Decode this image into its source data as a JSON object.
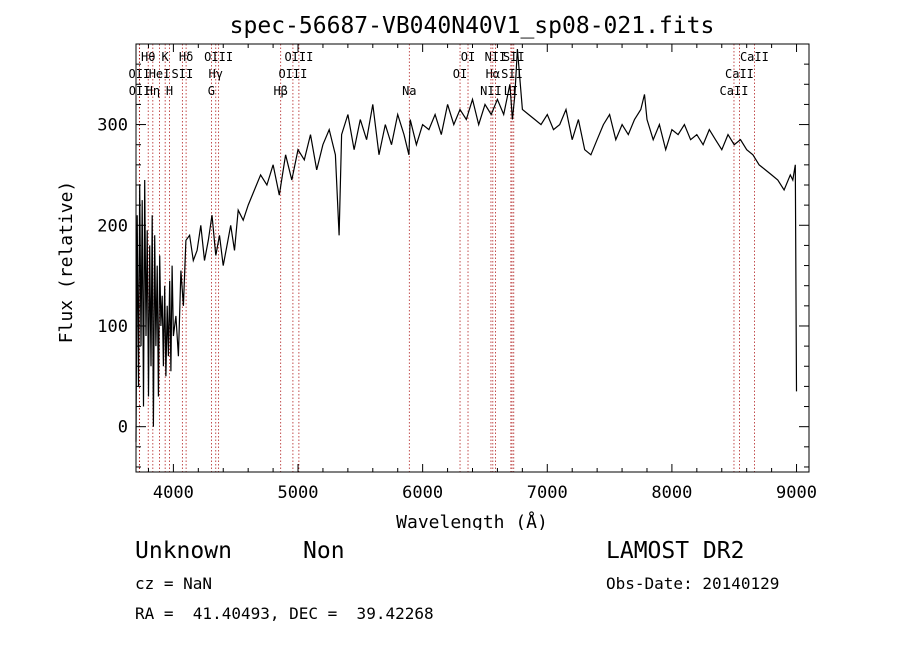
{
  "chart_data": {
    "type": "line",
    "title": "spec-56687-VB040N40V1_sp08-021.fits",
    "xlabel": "Wavelength (Å)",
    "ylabel": "Flux (relative)",
    "xlim": [
      3700,
      9100
    ],
    "ylim": [
      -45,
      380
    ],
    "xticks": [
      4000,
      5000,
      6000,
      7000,
      8000,
      9000
    ],
    "yticks": [
      0,
      100,
      200,
      300
    ],
    "grid": false,
    "series": [
      {
        "color": "#000000",
        "x": [
          3700,
          3710,
          3720,
          3730,
          3740,
          3750,
          3760,
          3770,
          3780,
          3790,
          3800,
          3810,
          3820,
          3830,
          3840,
          3850,
          3860,
          3870,
          3880,
          3890,
          3900,
          3910,
          3920,
          3930,
          3940,
          3950,
          3960,
          3970,
          3980,
          3990,
          4000,
          4020,
          4040,
          4060,
          4080,
          4100,
          4130,
          4160,
          4190,
          4220,
          4250,
          4280,
          4310,
          4340,
          4370,
          4400,
          4430,
          4460,
          4490,
          4520,
          4560,
          4600,
          4650,
          4700,
          4750,
          4800,
          4850,
          4900,
          4950,
          5000,
          5050,
          5100,
          5150,
          5200,
          5250,
          5300,
          5330,
          5350,
          5400,
          5450,
          5500,
          5550,
          5600,
          5650,
          5700,
          5750,
          5800,
          5850,
          5890,
          5900,
          5950,
          6000,
          6050,
          6100,
          6150,
          6200,
          6250,
          6300,
          6350,
          6400,
          6450,
          6500,
          6550,
          6600,
          6650,
          6700,
          6720,
          6740,
          6760,
          6800,
          6850,
          6900,
          6950,
          7000,
          7050,
          7100,
          7150,
          7200,
          7250,
          7300,
          7350,
          7400,
          7450,
          7500,
          7550,
          7600,
          7650,
          7700,
          7750,
          7780,
          7800,
          7850,
          7900,
          7950,
          8000,
          8050,
          8100,
          8150,
          8200,
          8250,
          8300,
          8350,
          8400,
          8450,
          8500,
          8550,
          8600,
          8650,
          8700,
          8750,
          8800,
          8850,
          8900,
          8950,
          8970,
          8990,
          9000
        ],
        "values": [
          -15,
          210,
          40,
          240,
          80,
          225,
          20,
          245,
          90,
          195,
          30,
          180,
          60,
          210,
          0,
          190,
          80,
          160,
          30,
          170,
          100,
          130,
          60,
          140,
          50,
          120,
          70,
          145,
          55,
          160,
          90,
          110,
          70,
          155,
          120,
          185,
          190,
          165,
          175,
          200,
          165,
          185,
          210,
          170,
          190,
          160,
          180,
          200,
          175,
          215,
          205,
          220,
          235,
          250,
          240,
          260,
          230,
          270,
          245,
          275,
          265,
          290,
          255,
          280,
          295,
          270,
          190,
          290,
          310,
          275,
          305,
          285,
          320,
          270,
          300,
          280,
          310,
          290,
          270,
          305,
          280,
          300,
          295,
          310,
          290,
          320,
          300,
          315,
          305,
          325,
          300,
          320,
          310,
          325,
          310,
          340,
          305,
          330,
          375,
          315,
          310,
          305,
          300,
          310,
          295,
          300,
          315,
          285,
          305,
          275,
          270,
          285,
          300,
          310,
          285,
          300,
          290,
          305,
          315,
          330,
          305,
          285,
          300,
          275,
          295,
          290,
          300,
          285,
          290,
          280,
          295,
          285,
          275,
          290,
          280,
          285,
          275,
          270,
          260,
          255,
          250,
          245,
          235,
          250,
          245,
          260,
          35
        ]
      }
    ],
    "line_markers": [
      {
        "label": "Hθ",
        "x": 3798,
        "row": 1
      },
      {
        "label": "OII",
        "x": 3727,
        "row": 2
      },
      {
        "label": "OII",
        "x": 3729,
        "row": 3
      },
      {
        "label": "Hη",
        "x": 3835,
        "row": 3
      },
      {
        "label": "HeI",
        "x": 3889,
        "row": 2
      },
      {
        "label": "K",
        "x": 3934,
        "row": 1
      },
      {
        "label": "H",
        "x": 3969,
        "row": 3
      },
      {
        "label": "SII",
        "x": 4072,
        "row": 2
      },
      {
        "label": "Hδ",
        "x": 4102,
        "row": 1
      },
      {
        "label": "OIII",
        "x": 4363,
        "row": 1
      },
      {
        "label": "Hγ",
        "x": 4340,
        "row": 2
      },
      {
        "label": "G",
        "x": 4305,
        "row": 3
      },
      {
        "label": "Hβ",
        "x": 4861,
        "row": 3
      },
      {
        "label": "OIII",
        "x": 5007,
        "row": 1
      },
      {
        "label": "OIII",
        "x": 4959,
        "row": 2
      },
      {
        "label": "Na",
        "x": 5893,
        "row": 3
      },
      {
        "label": "OI",
        "x": 6364,
        "row": 1
      },
      {
        "label": "OI",
        "x": 6300,
        "row": 2
      },
      {
        "label": "NII",
        "x": 6584,
        "row": 1
      },
      {
        "label": "Hα",
        "x": 6563,
        "row": 2
      },
      {
        "label": "NII",
        "x": 6548,
        "row": 3
      },
      {
        "label": "SII",
        "x": 6731,
        "row": 1
      },
      {
        "label": "SII",
        "x": 6717,
        "row": 2
      },
      {
        "label": "LI",
        "x": 6708,
        "row": 3
      },
      {
        "label": "CaII",
        "x": 8662,
        "row": 1
      },
      {
        "label": "CaII",
        "x": 8542,
        "row": 2
      },
      {
        "label": "CaII",
        "x": 8498,
        "row": 3
      }
    ]
  },
  "footer": {
    "object_class": "Unknown",
    "subclass": "Non",
    "survey": "LAMOST DR2",
    "redshift": "cz = NaN",
    "obs_date": "Obs-Date: 20140129",
    "coords": "RA =  41.40493, DEC =  39.42268"
  }
}
